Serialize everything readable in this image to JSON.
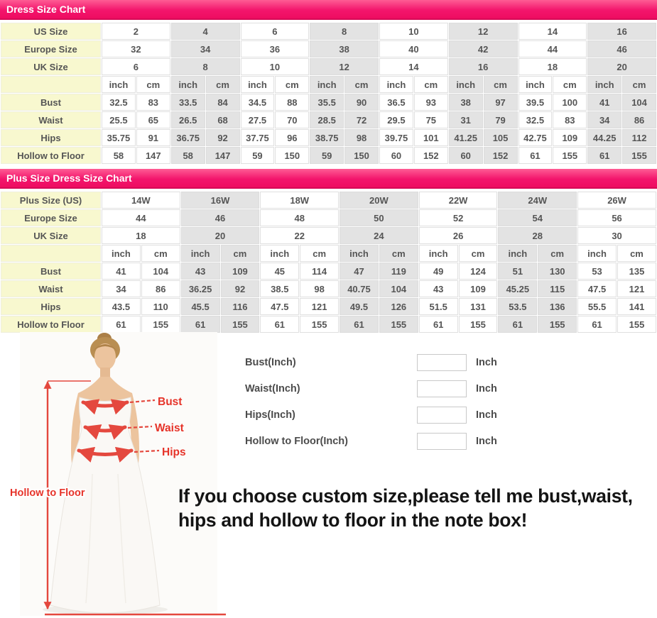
{
  "colors": {
    "header_pink": "#f3156c",
    "header_pink_dark": "#d60a57",
    "label_yellow": "#f8f8cf",
    "alt_gray": "#e3e3e3",
    "accent_red": "#e4483e",
    "label_red": "#e63329",
    "table_text": "#555555"
  },
  "chart_data": [
    {
      "type": "table",
      "title": "Dress Size Chart",
      "size_rows": [
        {
          "label": "US Size",
          "values": [
            "2",
            "4",
            "6",
            "8",
            "10",
            "12",
            "14",
            "16"
          ]
        },
        {
          "label": "Europe Size",
          "values": [
            "32",
            "34",
            "36",
            "38",
            "40",
            "42",
            "44",
            "46"
          ]
        },
        {
          "label": "UK Size",
          "values": [
            "6",
            "8",
            "10",
            "12",
            "14",
            "16",
            "18",
            "20"
          ]
        }
      ],
      "unit_labels": [
        "inch",
        "cm"
      ],
      "measure_rows": [
        {
          "label": "Bust",
          "values": [
            "32.5",
            "83",
            "33.5",
            "84",
            "34.5",
            "88",
            "35.5",
            "90",
            "36.5",
            "93",
            "38",
            "97",
            "39.5",
            "100",
            "41",
            "104"
          ]
        },
        {
          "label": "Waist",
          "values": [
            "25.5",
            "65",
            "26.5",
            "68",
            "27.5",
            "70",
            "28.5",
            "72",
            "29.5",
            "75",
            "31",
            "79",
            "32.5",
            "83",
            "34",
            "86"
          ]
        },
        {
          "label": "Hips",
          "values": [
            "35.75",
            "91",
            "36.75",
            "92",
            "37.75",
            "96",
            "38.75",
            "98",
            "39.75",
            "101",
            "41.25",
            "105",
            "42.75",
            "109",
            "44.25",
            "112"
          ]
        },
        {
          "label": "Hollow to Floor",
          "values": [
            "58",
            "147",
            "58",
            "147",
            "59",
            "150",
            "59",
            "150",
            "60",
            "152",
            "60",
            "152",
            "61",
            "155",
            "61",
            "155"
          ]
        }
      ]
    },
    {
      "type": "table",
      "title": "Plus Size Dress Size Chart",
      "size_rows": [
        {
          "label": "Plus Size (US)",
          "values": [
            "14W",
            "16W",
            "18W",
            "20W",
            "22W",
            "24W",
            "26W"
          ]
        },
        {
          "label": "Europe Size",
          "values": [
            "44",
            "46",
            "48",
            "50",
            "52",
            "54",
            "56"
          ]
        },
        {
          "label": "UK Size",
          "values": [
            "18",
            "20",
            "22",
            "24",
            "26",
            "28",
            "30"
          ]
        }
      ],
      "unit_labels": [
        "inch",
        "cm"
      ],
      "measure_rows": [
        {
          "label": "Bust",
          "values": [
            "41",
            "104",
            "43",
            "109",
            "45",
            "114",
            "47",
            "119",
            "49",
            "124",
            "51",
            "130",
            "53",
            "135"
          ]
        },
        {
          "label": "Waist",
          "values": [
            "34",
            "86",
            "36.25",
            "92",
            "38.5",
            "98",
            "40.75",
            "104",
            "43",
            "109",
            "45.25",
            "115",
            "47.5",
            "121"
          ]
        },
        {
          "label": "Hips",
          "values": [
            "43.5",
            "110",
            "45.5",
            "116",
            "47.5",
            "121",
            "49.5",
            "126",
            "51.5",
            "131",
            "53.5",
            "136",
            "55.5",
            "141"
          ]
        },
        {
          "label": "Hollow to Floor",
          "values": [
            "61",
            "155",
            "61",
            "155",
            "61",
            "155",
            "61",
            "155",
            "61",
            "155",
            "61",
            "155",
            "61",
            "155"
          ]
        }
      ]
    }
  ],
  "figure": {
    "bust_label": "Bust",
    "waist_label": "Waist",
    "hips_label": "Hips",
    "hollow_label": "Hollow to Floor"
  },
  "form": {
    "fields": [
      {
        "label": "Bust(Inch)",
        "value": "",
        "unit": "Inch"
      },
      {
        "label": "Waist(Inch)",
        "value": "",
        "unit": "Inch"
      },
      {
        "label": "Hips(Inch)",
        "value": "",
        "unit": "Inch"
      },
      {
        "label": "Hollow to Floor(Inch)",
        "value": "",
        "unit": "Inch"
      }
    ]
  },
  "note": {
    "line1": "If you choose custom size,please tell me bust,waist,",
    "line2": "hips and hollow to floor in the note box!"
  }
}
